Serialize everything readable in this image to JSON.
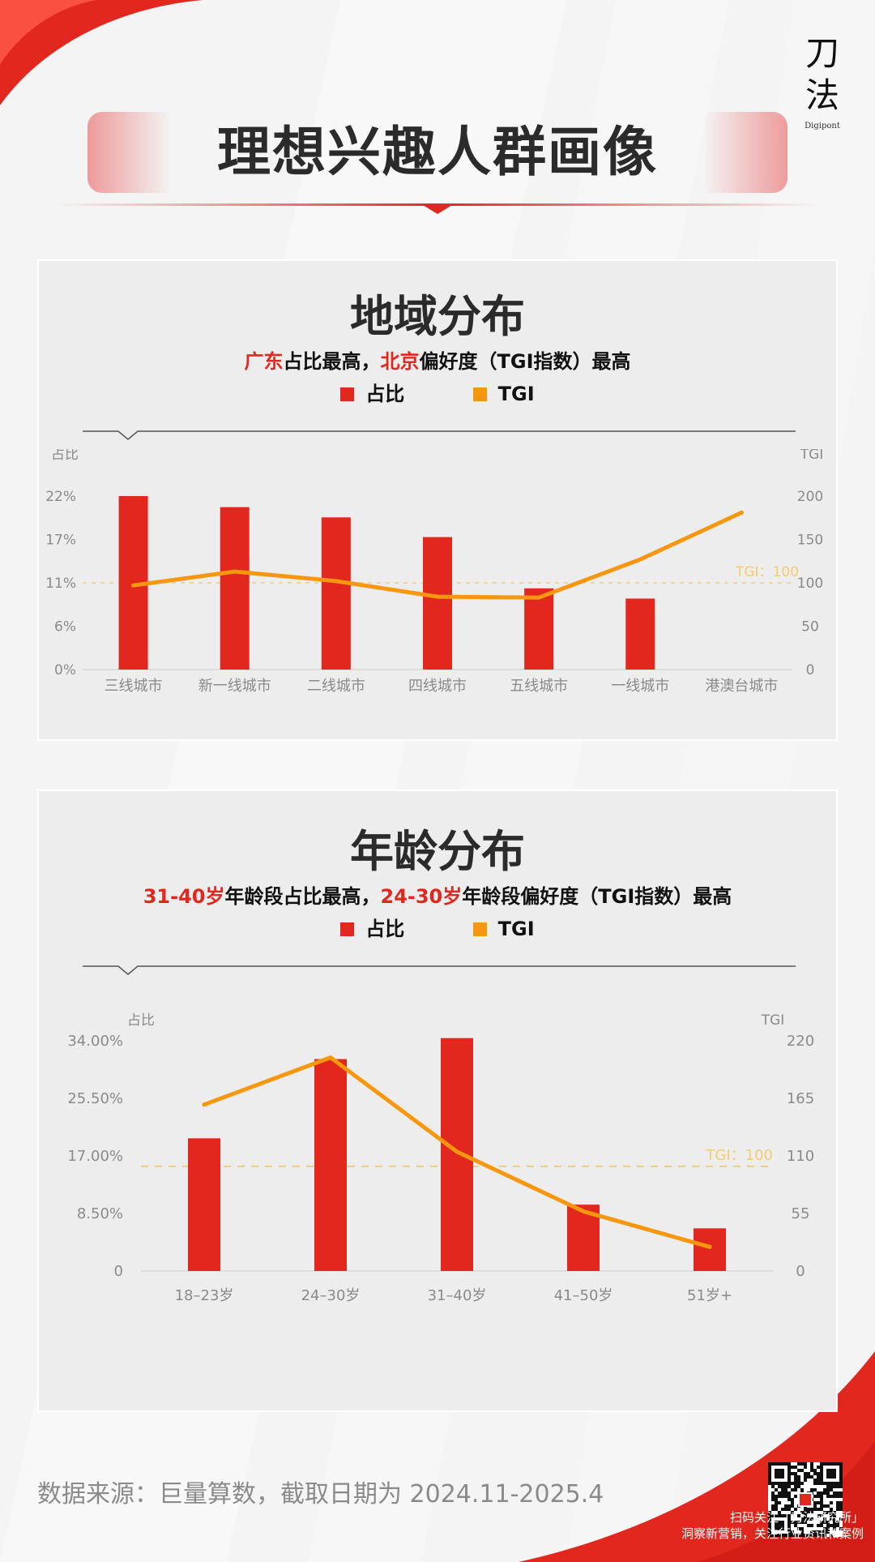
{
  "page": {
    "title": "理想兴趣人群画像",
    "logo_glyph_1": "刀",
    "logo_glyph_2": "法",
    "logo_sub": "Digipont",
    "source_note": "数据来源：巨量算数，截取日期为 2024.11-2025.4",
    "qr_caption_line1": "扫码关注「刀法研究所」",
    "qr_caption_line2": "洞察新营销，关注行业资讯和案例"
  },
  "colors": {
    "share": "#e2281e",
    "tgi": "#f7970f",
    "reference": "#f3cd6e",
    "title": "#2b2b2b",
    "accent": "#e2281e"
  },
  "legend": {
    "share": "占比",
    "tgi": "TGI"
  },
  "region": {
    "title": "地域分布",
    "subtitle_hl1": "广东",
    "subtitle_mid": "占比最高，",
    "subtitle_hl2": "北京",
    "subtitle_tail": "偏好度（TGI指数）最高"
  },
  "age": {
    "title": "年龄分布",
    "subtitle_hl1": "31-40岁",
    "subtitle_mid": "年龄段占比最高，",
    "subtitle_hl2": "24-30岁",
    "subtitle_tail": "年龄段偏好度（TGI指数）最高"
  },
  "chart_data": [
    {
      "type": "bar",
      "categories": [
        "三线城市",
        "新一线城市",
        "二线城市",
        "四线城市",
        "五线城市",
        "一线城市",
        "港澳台城市"
      ],
      "series": [
        {
          "name": "占比",
          "type": "bar",
          "axis": "left",
          "values": [
            22,
            20.6,
            19.3,
            16.8,
            10.3,
            9.0,
            0
          ]
        },
        {
          "name": "TGI",
          "type": "line",
          "axis": "right",
          "values": [
            97,
            113,
            102,
            84,
            83,
            127,
            181
          ]
        }
      ],
      "ylabel_left": "占比",
      "ylabel_right": "TGI",
      "ylim_left": [
        0,
        22
      ],
      "yticks_left": [
        "0%",
        "6%",
        "11%",
        "17%",
        "22%"
      ],
      "ylim_right": [
        0,
        200
      ],
      "yticks_right": [
        "0",
        "50",
        "100",
        "150",
        "200"
      ],
      "reference_line": {
        "axis": "right",
        "value": 100,
        "label": "TGI：100"
      },
      "legend_position": "top",
      "grid": false
    },
    {
      "type": "bar",
      "categories": [
        "18–23岁",
        "24–30岁",
        "31–40岁",
        "41–50岁",
        "51岁+"
      ],
      "series": [
        {
          "name": "占比",
          "type": "bar",
          "axis": "left",
          "values": [
            19.6,
            31.3,
            34.4,
            9.8,
            6.3
          ]
        },
        {
          "name": "TGI",
          "type": "line",
          "axis": "right",
          "values": [
            159,
            204,
            114,
            57,
            23
          ]
        }
      ],
      "ylabel_left": "占比",
      "ylabel_right": "TGI",
      "ylim_left": [
        0,
        34
      ],
      "yticks_left": [
        "0",
        "8.50%",
        "17.00%",
        "25.50%",
        "34.00%"
      ],
      "ylim_right": [
        0,
        220
      ],
      "yticks_right": [
        "0",
        "55",
        "110",
        "165",
        "220"
      ],
      "reference_line": {
        "axis": "right",
        "value": 100,
        "label": "TGI：100"
      },
      "legend_position": "top",
      "grid": false
    }
  ]
}
